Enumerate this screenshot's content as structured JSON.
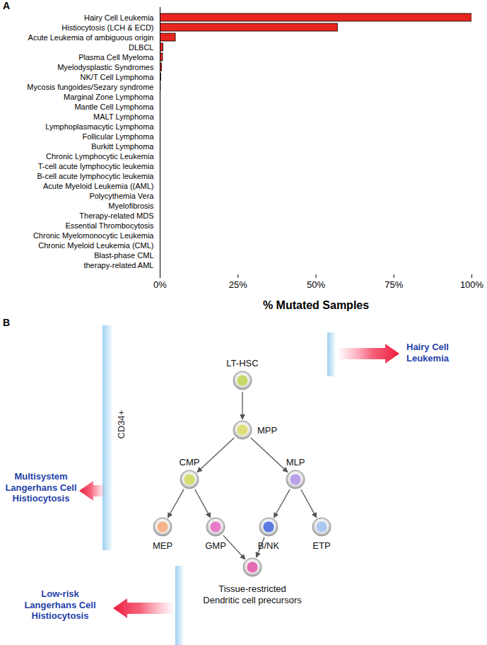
{
  "chart_data": {
    "type": "bar",
    "title": "A",
    "orientation": "horizontal",
    "categories": [
      "Hairy Cell Leukemia",
      "Histiocytosis (LCH & ECD)",
      "Acute Leukemia of ambiguous origin",
      "DLBCL",
      "Plasma Cell Myeloma",
      "Myelodysplastic Syndromes",
      "NK/T Cell Lymphoma",
      "Mycosis fungoides/Sezary syndrome",
      "Marginal Zone Lymphoma",
      "Mantle Cell Lymphoma",
      "MALT Lymphoma",
      "Lymphoplasmacytic Lymphoma",
      "Follicular Lymphoma",
      "Burkitt Lymphoma",
      "Chronic Lymphocytic Leukemia",
      "T-cell acute lymphocytic leukemia",
      "B-cell acute lymphocytic leukemia",
      "Acute Myeloid Leukemia ((AML)",
      "Polycythemia Vera",
      "Myelofibrosis",
      "Therapy-related MDS",
      "Essential Thrombocytosis",
      "Chronic Myelomonocytic Leukemia",
      "Chronic Myeloid Leukemia (CML)",
      "Blast-phase CML",
      "therapy-related AML"
    ],
    "values": [
      100,
      57,
      5,
      1.0,
      0.9,
      0.6,
      0.3,
      0.2,
      0,
      0,
      0,
      0,
      0,
      0,
      0,
      0,
      0,
      0,
      0,
      0,
      0,
      0,
      0,
      0,
      0,
      0
    ],
    "color": "#e8251f",
    "x_label": "% Mutated Samples",
    "xlim": [
      0,
      100
    ],
    "xticks": [
      {
        "value": 0,
        "label": "0%"
      },
      {
        "value": 25,
        "label": "25%"
      },
      {
        "value": 50,
        "label": "50%"
      },
      {
        "value": 75,
        "label": "75%"
      },
      {
        "value": 100,
        "label": "100%"
      }
    ],
    "grid": false
  },
  "diagram": {
    "title": "B",
    "nodes": [
      {
        "label": "LT-HSC",
        "color": "#c4d86a"
      },
      {
        "label": "MPP",
        "color": "#dede7a"
      },
      {
        "label": "CMP",
        "color": "#d3de6c"
      },
      {
        "label": "MLP",
        "color": "#b7a2ea"
      },
      {
        "label": "MEP",
        "color": "#f3b48c"
      },
      {
        "label": "GMP",
        "color": "#e77cc6"
      },
      {
        "label": "B/NK",
        "color": "#5b7be0"
      },
      {
        "label": "ETP",
        "color": "#a9c8f0"
      },
      {
        "label": [
          "Tissue-restricted",
          "Dendritic cell precursors"
        ],
        "color": "#e46ab4"
      }
    ],
    "edges": [
      [
        0,
        1
      ],
      [
        1,
        2
      ],
      [
        1,
        3
      ],
      [
        2,
        4
      ],
      [
        2,
        5
      ],
      [
        3,
        6
      ],
      [
        3,
        7
      ],
      [
        5,
        8
      ],
      [
        6,
        8
      ]
    ],
    "band_label": "CD34+",
    "annotations": [
      {
        "text": [
          "Hairy Cell",
          "Leukemia"
        ]
      },
      {
        "text": [
          "Multisystem",
          "Langerhans Cell",
          "Histiocytosis"
        ]
      },
      {
        "text": [
          "Low-risk",
          "Langerhans Cell",
          "Histiocytosis"
        ]
      }
    ]
  }
}
